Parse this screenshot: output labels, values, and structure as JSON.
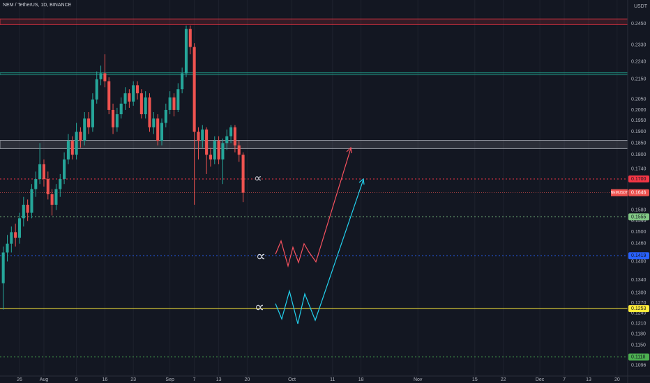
{
  "chart_data": {
    "type": "candlestick",
    "title": "NEM / TetherUS, 1D, BINANCE",
    "y_axis_unit": "USDT",
    "log_scale": true,
    "grid": true,
    "up_color": "#26a69a",
    "down_color": "#ef5350",
    "xlim": [
      20.2,
      174.6
    ],
    "xticks": [
      {
        "value": 25,
        "label": "26"
      },
      {
        "value": 31,
        "label": "Aug"
      },
      {
        "value": 39,
        "label": "9"
      },
      {
        "value": 46,
        "label": "16"
      },
      {
        "value": 53,
        "label": "23"
      },
      {
        "value": 62,
        "label": "Sep"
      },
      {
        "value": 68,
        "label": "7"
      },
      {
        "value": 74,
        "label": "13"
      },
      {
        "value": 81,
        "label": "20"
      },
      {
        "value": 92,
        "label": "Oct"
      },
      {
        "value": 102,
        "label": "11"
      },
      {
        "value": 109,
        "label": "18"
      },
      {
        "value": 123,
        "label": "Nov"
      },
      {
        "value": 137,
        "label": "15"
      },
      {
        "value": 144,
        "label": "22"
      },
      {
        "value": 153,
        "label": "Dec"
      },
      {
        "value": 159,
        "label": "7"
      },
      {
        "value": 165,
        "label": "13"
      },
      {
        "value": 172,
        "label": "20"
      }
    ],
    "ylim": [
      0.1069,
      0.2591
    ],
    "yticks": [
      {
        "value": 0.245,
        "label": "0.2450"
      },
      {
        "value": 0.233,
        "label": "0.2330"
      },
      {
        "value": 0.224,
        "label": "0.2240"
      },
      {
        "value": 0.215,
        "label": "0.2150"
      },
      {
        "value": 0.205,
        "label": "0.2050"
      },
      {
        "value": 0.2,
        "label": "0.2000"
      },
      {
        "value": 0.195,
        "label": "0.1950"
      },
      {
        "value": 0.19,
        "label": "0.1900"
      },
      {
        "value": 0.185,
        "label": "0.1850"
      },
      {
        "value": 0.18,
        "label": "0.1800"
      },
      {
        "value": 0.174,
        "label": "0.1740"
      },
      {
        "value": 0.158,
        "label": "0.1580"
      },
      {
        "value": 0.154,
        "label": "0.1540"
      },
      {
        "value": 0.15,
        "label": "0.1500"
      },
      {
        "value": 0.146,
        "label": "0.1460"
      },
      {
        "value": 0.14,
        "label": "0.1400"
      },
      {
        "value": 0.134,
        "label": "0.1340"
      },
      {
        "value": 0.13,
        "label": "0.1300"
      },
      {
        "value": 0.127,
        "label": "0.1270"
      },
      {
        "value": 0.124,
        "label": "0.1240"
      },
      {
        "value": 0.121,
        "label": "0.1210"
      },
      {
        "value": 0.118,
        "label": "0.1180"
      },
      {
        "value": 0.115,
        "label": "0.1150"
      },
      0.1096
    ],
    "x": [
      21,
      22,
      23,
      24,
      25,
      26,
      27,
      28,
      29,
      30,
      31,
      32,
      33,
      34,
      35,
      36,
      37,
      38,
      39,
      40,
      41,
      42,
      43,
      44,
      45,
      46,
      47,
      48,
      49,
      50,
      51,
      52,
      53,
      54,
      55,
      56,
      57,
      58,
      59,
      60,
      61,
      62,
      63,
      64,
      65,
      66,
      67,
      68,
      69,
      70,
      71,
      72,
      73,
      74,
      75,
      76,
      77,
      78,
      79,
      80
    ],
    "open": [
      0.133,
      0.143,
      0.146,
      0.15,
      0.148,
      0.155,
      0.16,
      0.157,
      0.166,
      0.17,
      0.176,
      0.17,
      0.164,
      0.16,
      0.166,
      0.17,
      0.178,
      0.186,
      0.18,
      0.19,
      0.186,
      0.196,
      0.192,
      0.205,
      0.215,
      0.218,
      0.214,
      0.2,
      0.192,
      0.198,
      0.203,
      0.208,
      0.204,
      0.212,
      0.208,
      0.198,
      0.206,
      0.192,
      0.196,
      0.186,
      0.194,
      0.2,
      0.206,
      0.2,
      0.21,
      0.218,
      0.242,
      0.232,
      0.19,
      0.186,
      0.191,
      0.18,
      0.178,
      0.186,
      0.178,
      0.185,
      0.188,
      0.192,
      0.184,
      0.18
    ],
    "high": [
      0.145,
      0.149,
      0.152,
      0.153,
      0.157,
      0.163,
      0.162,
      0.168,
      0.173,
      0.185,
      0.178,
      0.173,
      0.166,
      0.168,
      0.172,
      0.181,
      0.189,
      0.188,
      0.194,
      0.192,
      0.199,
      0.199,
      0.208,
      0.219,
      0.222,
      0.228,
      0.216,
      0.203,
      0.201,
      0.206,
      0.211,
      0.21,
      0.214,
      0.214,
      0.21,
      0.209,
      0.208,
      0.199,
      0.198,
      0.196,
      0.203,
      0.209,
      0.208,
      0.213,
      0.221,
      0.244,
      0.244,
      0.234,
      0.192,
      0.193,
      0.192,
      0.183,
      0.188,
      0.188,
      0.187,
      0.191,
      0.193,
      0.193,
      0.186,
      0.181
    ],
    "low": [
      0.125,
      0.14,
      0.143,
      0.145,
      0.146,
      0.152,
      0.154,
      0.155,
      0.163,
      0.168,
      0.167,
      0.162,
      0.156,
      0.158,
      0.163,
      0.168,
      0.176,
      0.178,
      0.178,
      0.183,
      0.184,
      0.189,
      0.19,
      0.203,
      0.212,
      0.211,
      0.198,
      0.189,
      0.19,
      0.196,
      0.2,
      0.201,
      0.202,
      0.205,
      0.196,
      0.196,
      0.19,
      0.189,
      0.184,
      0.184,
      0.192,
      0.198,
      0.197,
      0.199,
      0.208,
      0.216,
      0.228,
      0.16,
      0.178,
      0.183,
      0.172,
      0.175,
      0.176,
      0.176,
      0.168,
      0.182,
      0.185,
      0.181,
      0.177,
      0.161
    ],
    "close": [
      0.143,
      0.146,
      0.15,
      0.148,
      0.155,
      0.16,
      0.157,
      0.166,
      0.17,
      0.176,
      0.17,
      0.164,
      0.16,
      0.166,
      0.17,
      0.178,
      0.186,
      0.18,
      0.19,
      0.186,
      0.196,
      0.192,
      0.205,
      0.215,
      0.218,
      0.214,
      0.2,
      0.192,
      0.198,
      0.203,
      0.208,
      0.204,
      0.212,
      0.208,
      0.198,
      0.206,
      0.192,
      0.196,
      0.186,
      0.194,
      0.2,
      0.206,
      0.2,
      0.21,
      0.218,
      0.242,
      0.232,
      0.19,
      0.186,
      0.191,
      0.18,
      0.178,
      0.186,
      0.178,
      0.185,
      0.188,
      0.192,
      0.184,
      0.18,
      0.1646
    ],
    "symbol": "NEMUSDT",
    "last_price_label": "0.1646",
    "zones": [
      {
        "low": 0.2445,
        "high": 0.2478,
        "color": "#f23645"
      },
      {
        "low": 0.2173,
        "high": 0.2183,
        "color": "#22ab94"
      },
      {
        "low": 0.1826,
        "high": 0.1862,
        "color": "#b2b5be"
      }
    ],
    "levels": [
      {
        "value": 0.17,
        "label": "0.1700",
        "color": "#f23645",
        "dashed": true
      },
      {
        "value": 0.1555,
        "label": "0.1555",
        "color": "#81c784",
        "dashed": true
      },
      {
        "value": 0.1419,
        "label": "0.1419",
        "color": "#2962ff",
        "dashed": true
      },
      {
        "value": 0.1253,
        "label": "0.1253",
        "color": "#ffeb3b",
        "dashed": false
      },
      {
        "value": 0.1118,
        "label": "0.1118",
        "color": "#4caf50",
        "dashed": true
      }
    ],
    "annotations": [
      "∝",
      "∝",
      "∝"
    ]
  }
}
